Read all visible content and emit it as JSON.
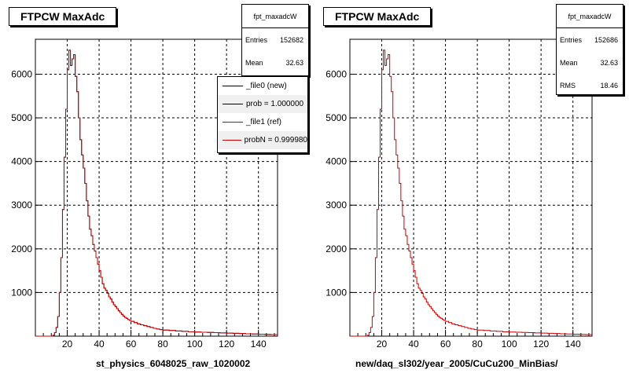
{
  "chart_data": [
    {
      "type": "histogram",
      "title": "FTPCW MaxAdc",
      "xlabel": "st_physics_6048025_raw_1020002",
      "ylabel": "",
      "xlim": [
        0,
        152
      ],
      "ylim": [
        0,
        6800
      ],
      "x_ticks": [
        20,
        40,
        60,
        80,
        100,
        120,
        140
      ],
      "y_ticks": [
        1000,
        2000,
        3000,
        4000,
        5000,
        6000
      ],
      "grid": true,
      "stats": {
        "name": "fpt_maxadcW",
        "entries_label": "Entries",
        "entries": "152682",
        "mean_label": "Mean",
        "mean": "32.63"
      },
      "legend": {
        "placement": "top-right",
        "entries": [
          {
            "label": "_file0 (new)",
            "color": "#000000"
          },
          {
            "label": "prob = 1.000000",
            "color": "#000000"
          },
          {
            "label": "_file1 (ref)",
            "color": "#cc0000"
          },
          {
            "label": "probN = 0.999980",
            "color": "#cc0000"
          }
        ]
      },
      "series": [
        {
          "name": "_file0 (new)",
          "color": "#000000",
          "bins": [
            [
              0,
              0
            ],
            [
              10,
              0
            ],
            [
              11,
              20
            ],
            [
              12,
              80
            ],
            [
              13,
              200
            ],
            [
              14,
              450
            ],
            [
              15,
              1000
            ],
            [
              16,
              1800
            ],
            [
              17,
              2900
            ],
            [
              18,
              4100
            ],
            [
              19,
              5200
            ],
            [
              20,
              6100
            ],
            [
              21,
              6550
            ],
            [
              22,
              6200
            ],
            [
              23,
              6350
            ],
            [
              24,
              6450
            ],
            [
              25,
              5950
            ],
            [
              26,
              5600
            ],
            [
              27,
              5000
            ],
            [
              28,
              4500
            ],
            [
              29,
              4150
            ],
            [
              30,
              3850
            ],
            [
              31,
              3500
            ],
            [
              32,
              3100
            ],
            [
              33,
              2750
            ],
            [
              34,
              2450
            ],
            [
              35,
              2300
            ],
            [
              36,
              2100
            ],
            [
              37,
              1950
            ],
            [
              38,
              1800
            ],
            [
              39,
              1650
            ],
            [
              40,
              1500
            ],
            [
              41,
              1350
            ],
            [
              42,
              1200
            ],
            [
              43,
              1100
            ],
            [
              44,
              1050
            ],
            [
              45,
              980
            ],
            [
              46,
              900
            ],
            [
              47,
              850
            ],
            [
              48,
              780
            ],
            [
              49,
              720
            ],
            [
              50,
              680
            ],
            [
              51,
              630
            ],
            [
              52,
              580
            ],
            [
              53,
              540
            ],
            [
              54,
              500
            ],
            [
              55,
              460
            ],
            [
              56,
              430
            ],
            [
              57,
              410
            ],
            [
              58,
              380
            ],
            [
              59,
              360
            ],
            [
              60,
              340
            ],
            [
              62,
              310
            ],
            [
              64,
              280
            ],
            [
              66,
              260
            ],
            [
              68,
              240
            ],
            [
              70,
              220
            ],
            [
              72,
              200
            ],
            [
              74,
              180
            ],
            [
              76,
              165
            ],
            [
              78,
              150
            ],
            [
              80,
              140
            ],
            [
              84,
              130
            ],
            [
              88,
              120
            ],
            [
              92,
              110
            ],
            [
              96,
              100
            ],
            [
              100,
              95
            ],
            [
              104,
              90
            ],
            [
              108,
              85
            ],
            [
              112,
              80
            ],
            [
              116,
              75
            ],
            [
              120,
              70
            ],
            [
              124,
              65
            ],
            [
              128,
              60
            ],
            [
              132,
              55
            ],
            [
              136,
              50
            ],
            [
              140,
              45
            ],
            [
              144,
              40
            ],
            [
              148,
              35
            ],
            [
              152,
              0
            ]
          ]
        },
        {
          "name": "_file1 (ref)",
          "color": "#cc0000",
          "bins": [
            [
              0,
              0
            ],
            [
              10,
              0
            ],
            [
              11,
              20
            ],
            [
              12,
              80
            ],
            [
              13,
              200
            ],
            [
              14,
              450
            ],
            [
              15,
              1000
            ],
            [
              16,
              1800
            ],
            [
              17,
              2900
            ],
            [
              18,
              4100
            ],
            [
              19,
              5200
            ],
            [
              20,
              6100
            ],
            [
              21,
              6550
            ],
            [
              22,
              6200
            ],
            [
              23,
              6350
            ],
            [
              24,
              6450
            ],
            [
              25,
              5950
            ],
            [
              26,
              5600
            ],
            [
              27,
              5000
            ],
            [
              28,
              4500
            ],
            [
              29,
              4150
            ],
            [
              30,
              3850
            ],
            [
              31,
              3500
            ],
            [
              32,
              3100
            ],
            [
              33,
              2750
            ],
            [
              34,
              2450
            ],
            [
              35,
              2300
            ],
            [
              36,
              2100
            ],
            [
              37,
              1950
            ],
            [
              38,
              1800
            ],
            [
              39,
              1650
            ],
            [
              40,
              1500
            ],
            [
              41,
              1350
            ],
            [
              42,
              1200
            ],
            [
              43,
              1100
            ],
            [
              44,
              1050
            ],
            [
              45,
              980
            ],
            [
              46,
              900
            ],
            [
              47,
              850
            ],
            [
              48,
              780
            ],
            [
              49,
              720
            ],
            [
              50,
              680
            ],
            [
              51,
              630
            ],
            [
              52,
              580
            ],
            [
              53,
              540
            ],
            [
              54,
              500
            ],
            [
              55,
              460
            ],
            [
              56,
              430
            ],
            [
              57,
              410
            ],
            [
              58,
              380
            ],
            [
              59,
              360
            ],
            [
              60,
              340
            ],
            [
              62,
              310
            ],
            [
              64,
              280
            ],
            [
              66,
              260
            ],
            [
              68,
              240
            ],
            [
              70,
              220
            ],
            [
              72,
              200
            ],
            [
              74,
              180
            ],
            [
              76,
              165
            ],
            [
              78,
              150
            ],
            [
              80,
              140
            ],
            [
              84,
              130
            ],
            [
              88,
              120
            ],
            [
              92,
              110
            ],
            [
              96,
              100
            ],
            [
              100,
              95
            ],
            [
              104,
              90
            ],
            [
              108,
              85
            ],
            [
              112,
              80
            ],
            [
              116,
              75
            ],
            [
              120,
              70
            ],
            [
              124,
              65
            ],
            [
              128,
              60
            ],
            [
              132,
              55
            ],
            [
              136,
              50
            ],
            [
              140,
              45
            ],
            [
              144,
              40
            ],
            [
              148,
              35
            ],
            [
              152,
              0
            ]
          ]
        }
      ]
    },
    {
      "type": "histogram",
      "title": "FTPCW MaxAdc",
      "xlabel": "new/daq_sl302/year_2005/CuCu200_MinBias/",
      "ylabel": "",
      "xlim": [
        0,
        152
      ],
      "ylim": [
        0,
        6800
      ],
      "x_ticks": [
        20,
        40,
        60,
        80,
        100,
        120,
        140
      ],
      "y_ticks": [
        1000,
        2000,
        3000,
        4000,
        5000,
        6000
      ],
      "grid": true,
      "stats": {
        "name": "fpt_maxadcW",
        "entries_label": "Entries",
        "entries": "152686",
        "mean_label": "Mean",
        "mean": "32.63",
        "rms_label": "RMS",
        "rms": "18.46"
      },
      "series": [
        {
          "name": "",
          "color": "#cc0000",
          "bins": [
            [
              0,
              0
            ],
            [
              10,
              0
            ],
            [
              11,
              20
            ],
            [
              12,
              80
            ],
            [
              13,
              200
            ],
            [
              14,
              450
            ],
            [
              15,
              1000
            ],
            [
              16,
              1800
            ],
            [
              17,
              2900
            ],
            [
              18,
              4100
            ],
            [
              19,
              5200
            ],
            [
              20,
              6100
            ],
            [
              21,
              6550
            ],
            [
              22,
              6200
            ],
            [
              23,
              6350
            ],
            [
              24,
              6450
            ],
            [
              25,
              5950
            ],
            [
              26,
              5600
            ],
            [
              27,
              5000
            ],
            [
              28,
              4500
            ],
            [
              29,
              4150
            ],
            [
              30,
              3850
            ],
            [
              31,
              3500
            ],
            [
              32,
              3100
            ],
            [
              33,
              2750
            ],
            [
              34,
              2450
            ],
            [
              35,
              2300
            ],
            [
              36,
              2100
            ],
            [
              37,
              1950
            ],
            [
              38,
              1800
            ],
            [
              39,
              1650
            ],
            [
              40,
              1500
            ],
            [
              41,
              1350
            ],
            [
              42,
              1200
            ],
            [
              43,
              1100
            ],
            [
              44,
              1050
            ],
            [
              45,
              980
            ],
            [
              46,
              900
            ],
            [
              47,
              850
            ],
            [
              48,
              780
            ],
            [
              49,
              720
            ],
            [
              50,
              680
            ],
            [
              51,
              630
            ],
            [
              52,
              580
            ],
            [
              53,
              540
            ],
            [
              54,
              500
            ],
            [
              55,
              460
            ],
            [
              56,
              430
            ],
            [
              57,
              410
            ],
            [
              58,
              380
            ],
            [
              59,
              360
            ],
            [
              60,
              340
            ],
            [
              62,
              310
            ],
            [
              64,
              280
            ],
            [
              66,
              260
            ],
            [
              68,
              240
            ],
            [
              70,
              220
            ],
            [
              72,
              200
            ],
            [
              74,
              180
            ],
            [
              76,
              165
            ],
            [
              78,
              150
            ],
            [
              80,
              140
            ],
            [
              84,
              130
            ],
            [
              88,
              120
            ],
            [
              92,
              110
            ],
            [
              96,
              100
            ],
            [
              100,
              95
            ],
            [
              104,
              90
            ],
            [
              108,
              85
            ],
            [
              112,
              80
            ],
            [
              116,
              75
            ],
            [
              120,
              70
            ],
            [
              124,
              65
            ],
            [
              128,
              60
            ],
            [
              132,
              55
            ],
            [
              136,
              50
            ],
            [
              140,
              45
            ],
            [
              144,
              40
            ],
            [
              148,
              35
            ],
            [
              152,
              0
            ]
          ]
        }
      ]
    }
  ]
}
